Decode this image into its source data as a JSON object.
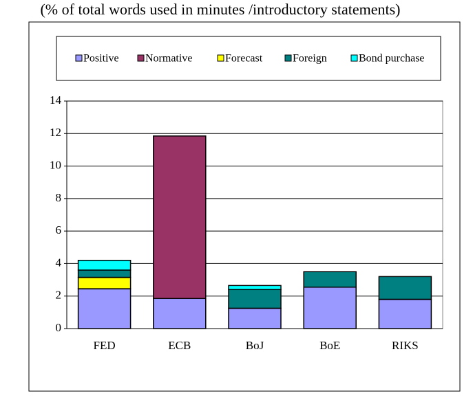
{
  "chart_data": {
    "type": "stacked_bar",
    "title": "(% of total words used in minutes /introductory statements)",
    "categories": [
      "FED",
      "ECB",
      "BoJ",
      "BoE",
      "RIKS"
    ],
    "series": [
      {
        "name": "Positive",
        "color": "#9999ff",
        "values": [
          2.45,
          1.85,
          1.25,
          2.55,
          1.8
        ]
      },
      {
        "name": "Normative",
        "color": "#993366",
        "values": [
          0,
          10.0,
          0,
          0,
          0
        ]
      },
      {
        "name": "Forecast",
        "color": "#ffff00",
        "values": [
          0.7,
          0,
          0,
          0,
          0
        ]
      },
      {
        "name": "Foreign",
        "color": "#008080",
        "values": [
          0.45,
          0,
          1.15,
          0.95,
          1.4
        ]
      },
      {
        "name": "Bond purchase",
        "color": "#00ffff",
        "values": [
          0.6,
          0,
          0.25,
          0,
          0
        ]
      }
    ],
    "ylim": [
      0,
      14
    ],
    "yticks": [
      0,
      2,
      4,
      6,
      8,
      10,
      12,
      14
    ],
    "grid": true
  }
}
